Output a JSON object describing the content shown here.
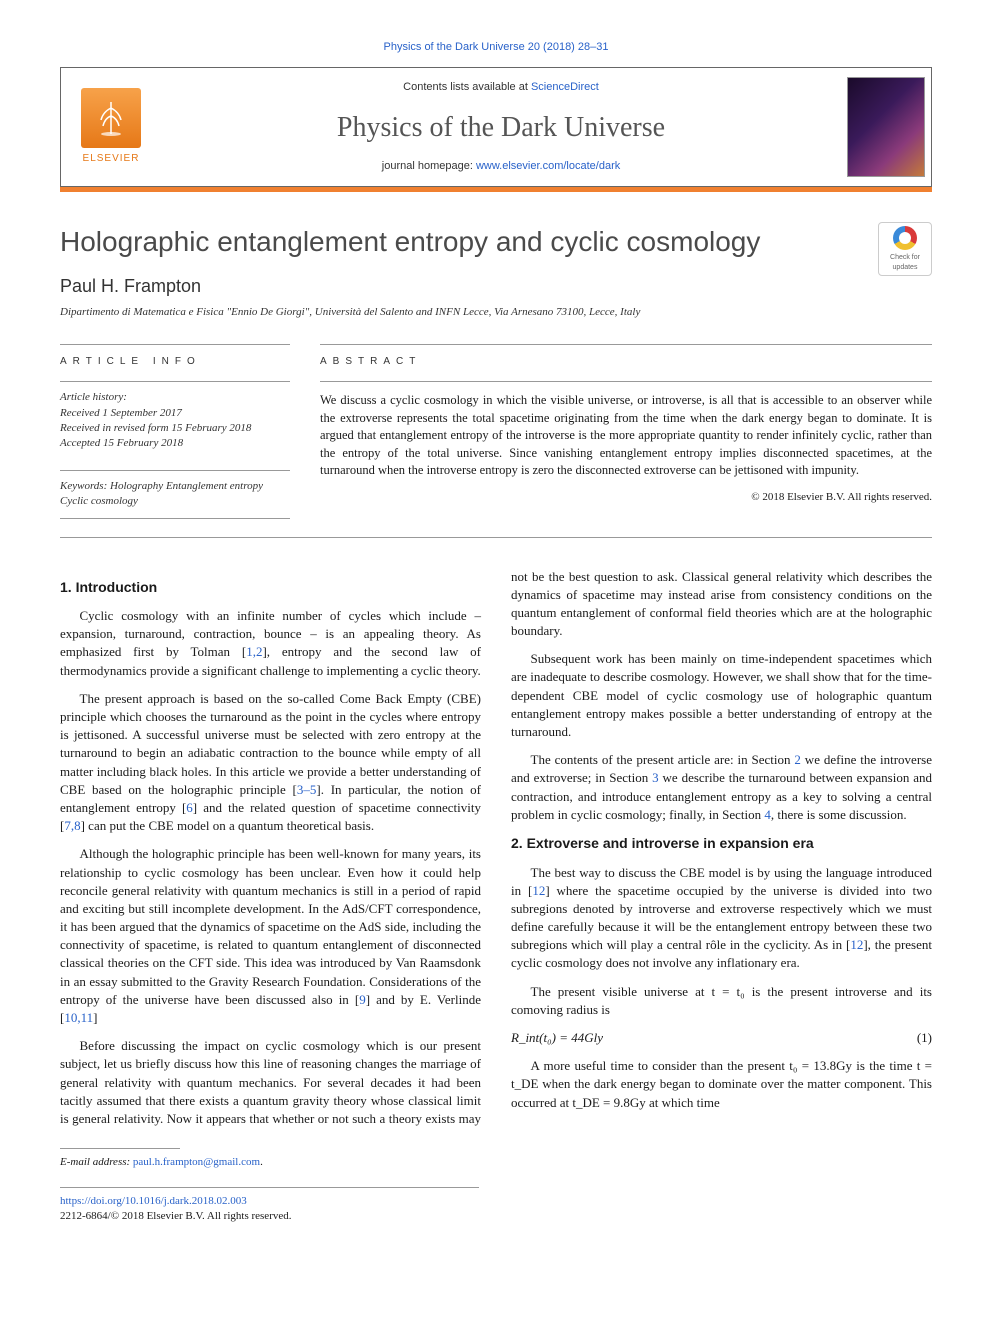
{
  "citation_line": "Physics of the Dark Universe 20 (2018) 28–31",
  "header": {
    "contents_prefix": "Contents lists available at ",
    "contents_link": "ScienceDirect",
    "journal_name": "Physics of the Dark Universe",
    "homepage_prefix": "journal homepage: ",
    "homepage_link": "www.elsevier.com/locate/dark",
    "publisher_name": "ELSEVIER"
  },
  "updates_badge": {
    "line1": "Check for",
    "line2": "updates"
  },
  "article": {
    "title": "Holographic entanglement entropy and cyclic cosmology",
    "author": "Paul H. Frampton",
    "affiliation": "Dipartimento di Matematica e Fisica \"Ennio De Giorgi\", Università del Salento and INFN Lecce, Via Arnesano 73100, Lecce, Italy"
  },
  "info": {
    "heading": "article info",
    "history_label": "Article history:",
    "received": "Received 1 September 2017",
    "revised": "Received in revised form 15 February 2018",
    "accepted": "Accepted 15 February 2018",
    "keywords_label": "Keywords:",
    "keywords": [
      "Holography",
      "Entanglement entropy",
      "Cyclic cosmology"
    ]
  },
  "abstract": {
    "heading": "abstract",
    "text": "We discuss a cyclic cosmology in which the visible universe, or introverse, is all that is accessible to an observer while the extroverse represents the total spacetime originating from the time when the dark energy began to dominate. It is argued that entanglement entropy of the introverse is the more appropriate quantity to render infinitely cyclic, rather than the entropy of the total universe. Since vanishing entanglement entropy implies disconnected spacetimes, at the turnaround when the introverse entropy is zero the disconnected extroverse can be jettisoned with impunity.",
    "copyright": "© 2018 Elsevier B.V. All rights reserved."
  },
  "sections": {
    "s1_title": "1. Introduction",
    "s1_p1": "Cyclic cosmology with an infinite number of cycles which include – expansion, turnaround, contraction, bounce – is an appealing theory. As emphasized first by Tolman [1,2], entropy and the second law of thermodynamics provide a significant challenge to implementing a cyclic theory.",
    "s1_p2": "The present approach is based on the so-called Come Back Empty (CBE) principle which chooses the turnaround as the point in the cycles where entropy is jettisoned. A successful universe must be selected with zero entropy at the turnaround to begin an adiabatic contraction to the bounce while empty of all matter including black holes. In this article we provide a better understanding of CBE based on the holographic principle [3–5]. In particular, the notion of entanglement entropy [6] and the related question of spacetime connectivity [7,8] can put the CBE model on a quantum theoretical basis.",
    "s1_p3": "Although the holographic principle has been well-known for many years, its relationship to cyclic cosmology has been unclear. Even how it could help reconcile general relativity with quantum mechanics is still in a period of rapid and exciting but still incomplete development. In the AdS/CFT correspondence, it has been argued that the dynamics of spacetime on the AdS side, including the connectivity of spacetime, is related to quantum entanglement of disconnected classical theories on the CFT side. This idea was introduced by Van Raamsdonk in an essay submitted to the Gravity Research Foundation. Considerations of the entropy of the universe have been discussed also in [9] and by E. Verlinde [10,11]",
    "s1_p4": "Before discussing the impact on cyclic cosmology which is our present subject, let us briefly discuss how this line of reasoning changes the marriage of general relativity with quantum mechanics. For several decades it had been tacitly assumed that there exists a quantum gravity theory whose classical limit is general relativity. Now it appears that whether or not such a theory exists may not be the best question to ask. Classical general relativity which describes the dynamics of spacetime may instead arise from consistency conditions on the quantum entanglement of conformal field theories which are at the holographic boundary.",
    "s1_p5": "Subsequent work has been mainly on time-independent spacetimes which are inadequate to describe cosmology. However, we shall show that for the time-dependent CBE model of cyclic cosmology use of holographic quantum entanglement entropy makes possible a better understanding of entropy at the turnaround.",
    "s1_p6": "The contents of the present article are: in Section 2 we define the introverse and extroverse; in Section 3 we describe the turnaround between expansion and contraction, and introduce entanglement entropy as a key to solving a central problem in cyclic cosmology; finally, in Section 4, there is some discussion.",
    "s2_title": "2. Extroverse and introverse in expansion era",
    "s2_p1": "The best way to discuss the CBE model is by using the language introduced in [12] where the spacetime occupied by the universe is divided into two subregions denoted by introverse and extroverse respectively which we must define carefully because it will be the entanglement entropy between these two subregions which will play a central rôle in the cyclicity. As in [12], the present cyclic cosmology does not involve any inflationary era.",
    "s2_p2": "The present visible universe at t = t₀ is the present introverse and its comoving radius is",
    "eq1_lhs": "R_int(t₀) = 44Gly",
    "eq1_num": "(1)",
    "s2_p3": "A more useful time to consider than the present t₀ = 13.8Gy is the time t = t_DE when the dark energy began to dominate over the matter component. This occurred at t_DE = 9.8Gy at which time"
  },
  "footer": {
    "email_label": "E-mail address: ",
    "email": "paul.h.frampton@gmail.com",
    "doi": "https://doi.org/10.1016/j.dark.2018.02.003",
    "issn_line": "2212-6864/© 2018 Elsevier B.V. All rights reserved."
  },
  "colors": {
    "link": "#2962c9",
    "accent": "#f08030",
    "publisher": "#e67817",
    "text": "#1a1a1a",
    "heading_gray": "#4a4a4a"
  }
}
